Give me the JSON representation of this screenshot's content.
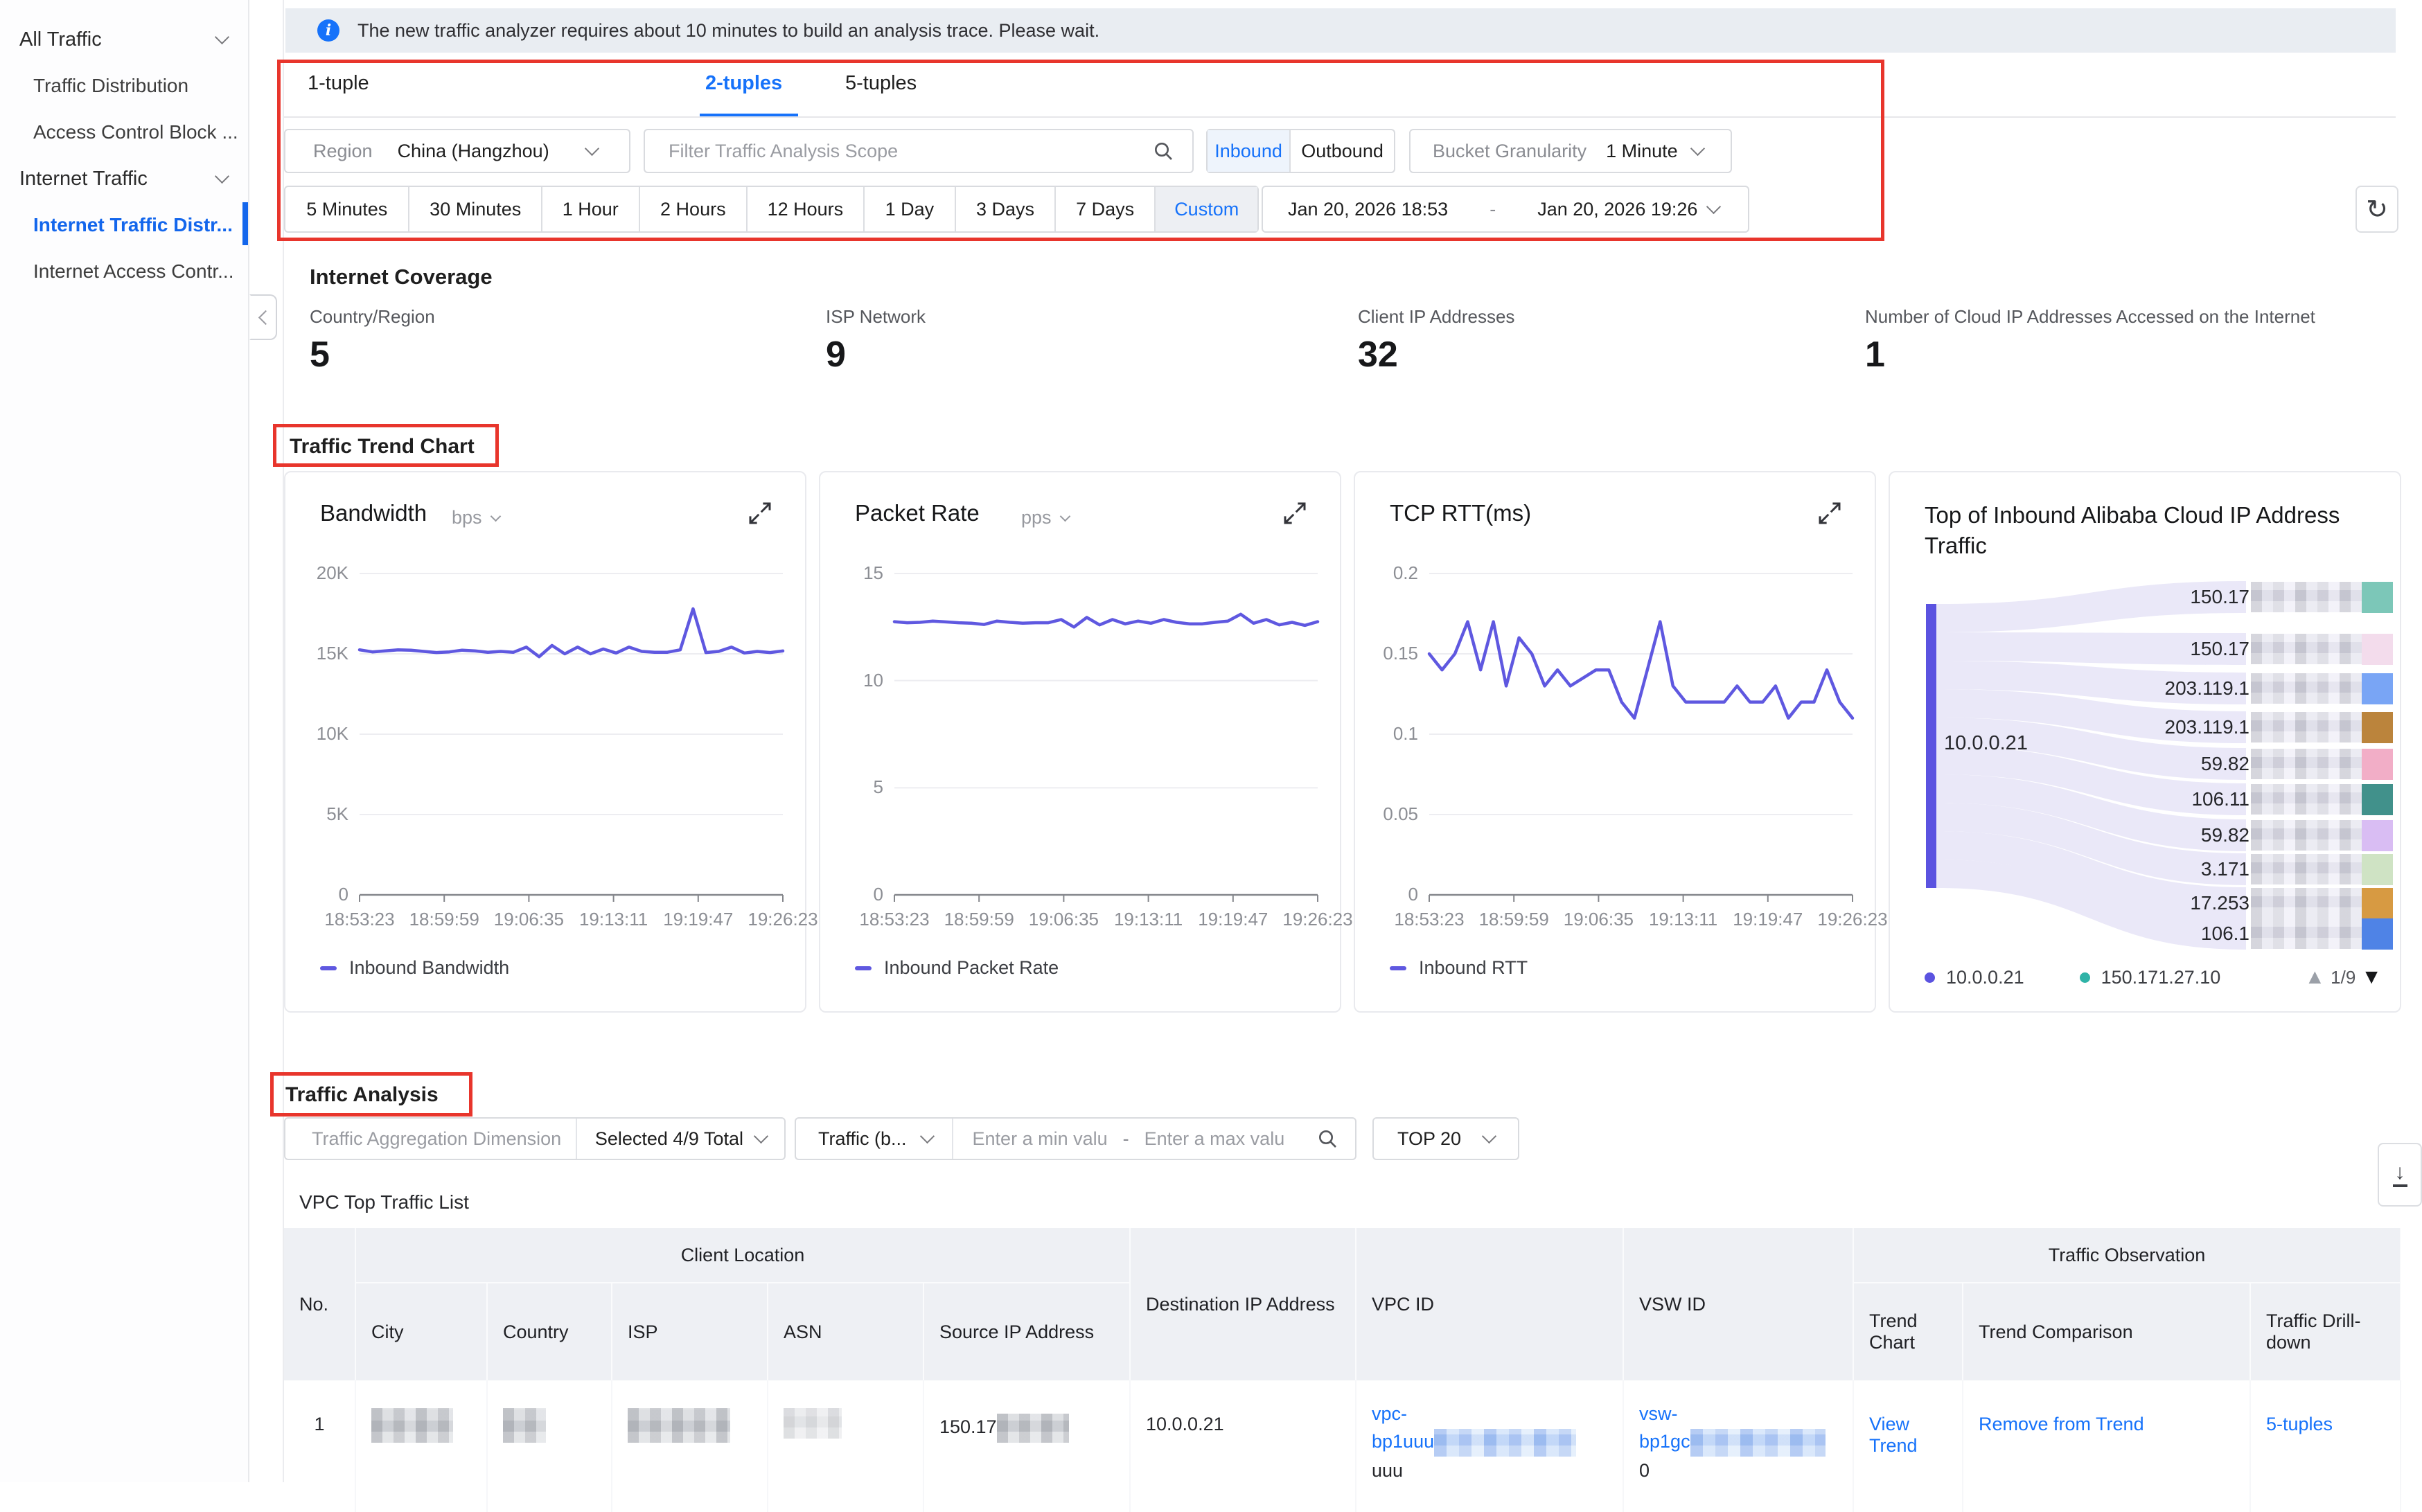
{
  "sidebar": {
    "section1": "All Traffic",
    "item1": "Traffic Distribution",
    "item2": "Access Control Block ...",
    "section2": "Internet Traffic",
    "item3": "Internet Traffic Distr...",
    "item4": "Internet Access Contr..."
  },
  "banner": {
    "text": "The new traffic analyzer requires about 10 minutes to build an analysis trace. Please wait."
  },
  "tabs": {
    "t1": "1-tuple",
    "t2": "2-tuples",
    "t3": "5-tuples"
  },
  "filters": {
    "region_label": "Region",
    "region_value": "China (Hangzhou)",
    "scope_placeholder": "Filter Traffic Analysis Scope",
    "direction_in": "Inbound",
    "direction_out": "Outbound",
    "bucket_label": "Bucket Granularity",
    "bucket_value": "1 Minute"
  },
  "time_range": {
    "options": [
      "5 Minutes",
      "30 Minutes",
      "1 Hour",
      "2 Hours",
      "12 Hours",
      "1 Day",
      "3 Days",
      "7 Days",
      "Custom"
    ],
    "active": "Custom",
    "start": "Jan 20, 2026 18:53",
    "sep": "-",
    "end": "Jan 20, 2026 19:26"
  },
  "coverage": {
    "title": "Internet Coverage",
    "stats": [
      {
        "label": "Country/Region",
        "value": "5"
      },
      {
        "label": "ISP Network",
        "value": "9"
      },
      {
        "label": "Client IP Addresses",
        "value": "32"
      },
      {
        "label": "Number of Cloud IP Addresses Accessed on the Internet",
        "value": "1"
      }
    ]
  },
  "trend_section": {
    "title": "Traffic Trend Chart"
  },
  "chart_data": [
    {
      "id": "bandwidth",
      "type": "line",
      "title": "Bandwidth",
      "unit": "bps",
      "legend": "Inbound Bandwidth",
      "color": "#5f58e0",
      "grid": true,
      "legend_position": "bottom-left",
      "ylim": [
        0,
        20000
      ],
      "yticks": [
        {
          "v": 20000,
          "label": "20K"
        },
        {
          "v": 15000,
          "label": "15K"
        },
        {
          "v": 10000,
          "label": "10K"
        },
        {
          "v": 5000,
          "label": "5K"
        },
        {
          "v": 0,
          "label": "0"
        }
      ],
      "x_ticks": [
        "18:53:23",
        "18:59:59",
        "19:06:35",
        "19:13:11",
        "19:19:47",
        "19:26:23"
      ],
      "values": [
        15250,
        15120,
        15180,
        15250,
        15230,
        15150,
        15080,
        15120,
        15230,
        15180,
        15100,
        15150,
        15100,
        15420,
        14820,
        15520,
        15000,
        15420,
        15000,
        15300,
        15050,
        15420,
        15150,
        15100,
        15100,
        15250,
        17800,
        15080,
        15150,
        15420,
        15050,
        15150,
        15080,
        15180
      ]
    },
    {
      "id": "packet",
      "type": "line",
      "title": "Packet Rate",
      "unit": "pps",
      "legend": "Inbound Packet Rate",
      "color": "#5f58e0",
      "grid": true,
      "legend_position": "bottom-left",
      "ylim": [
        0,
        15
      ],
      "yticks": [
        {
          "v": 15,
          "label": "15"
        },
        {
          "v": 10,
          "label": "10"
        },
        {
          "v": 5,
          "label": "5"
        },
        {
          "v": 0,
          "label": "0"
        }
      ],
      "x_ticks": [
        "18:53:23",
        "18:59:59",
        "19:06:35",
        "19:13:11",
        "19:19:47",
        "19:26:23"
      ],
      "values": [
        12.75,
        12.7,
        12.72,
        12.78,
        12.74,
        12.7,
        12.68,
        12.62,
        12.78,
        12.72,
        12.68,
        12.7,
        12.7,
        12.85,
        12.5,
        12.95,
        12.6,
        12.85,
        12.65,
        12.78,
        12.68,
        12.85,
        12.72,
        12.65,
        12.65,
        12.72,
        12.78,
        13.1,
        12.68,
        12.85,
        12.6,
        12.72,
        12.58,
        12.75
      ]
    },
    {
      "id": "rtt",
      "type": "line",
      "title": "TCP RTT(ms)",
      "unit": null,
      "legend": "Inbound RTT",
      "color": "#5f58e0",
      "grid": true,
      "legend_position": "bottom-left",
      "ylim": [
        0,
        0.2
      ],
      "yticks": [
        {
          "v": 0.2,
          "label": "0.2"
        },
        {
          "v": 0.15,
          "label": "0.15"
        },
        {
          "v": 0.1,
          "label": "0.1"
        },
        {
          "v": 0.05,
          "label": "0.05"
        },
        {
          "v": 0,
          "label": "0"
        }
      ],
      "x_ticks": [
        "18:53:23",
        "18:59:59",
        "19:06:35",
        "19:13:11",
        "19:19:47",
        "19:26:23"
      ],
      "values": [
        0.15,
        0.14,
        0.15,
        0.17,
        0.14,
        0.17,
        0.13,
        0.16,
        0.15,
        0.13,
        0.14,
        0.13,
        0.135,
        0.14,
        0.14,
        0.12,
        0.11,
        0.14,
        0.17,
        0.13,
        0.12,
        0.12,
        0.12,
        0.12,
        0.13,
        0.12,
        0.12,
        0.13,
        0.11,
        0.12,
        0.12,
        0.14,
        0.12,
        0.11
      ]
    },
    {
      "id": "sankey",
      "type": "sankey",
      "title": "Top of Inbound Alibaba Cloud IP Address Traffic",
      "source": "10.0.0.21",
      "source_color": "#5b53e0",
      "flow_color": "#eae8f8",
      "targets": [
        {
          "label": "150.17",
          "chip": "#7cc7b8"
        },
        {
          "label": "150.17",
          "chip": "#f3dcec"
        },
        {
          "label": "203.119.1",
          "chip": "#79a5f5"
        },
        {
          "label": "203.119.1",
          "chip": "#bb843c"
        },
        {
          "label": "59.82",
          "chip": "#f2aec7"
        },
        {
          "label": "106.11",
          "chip": "#41918b"
        },
        {
          "label": "59.82",
          "chip": "#d9bdf3"
        },
        {
          "label": "3.171",
          "chip": "#cfe3c4"
        },
        {
          "label": "17.253",
          "chip": "#d79a42"
        },
        {
          "label": "106.1",
          "chip": "#4f83e6"
        }
      ],
      "legend": [
        {
          "label": "10.0.0.21",
          "color": "#5b53e0"
        },
        {
          "label": "150.171.27.10",
          "color": "#2fb3a7"
        }
      ],
      "page": "1/9"
    }
  ],
  "analysis": {
    "title": "Traffic Analysis",
    "agg_placeholder": "Traffic Aggregation Dimension",
    "selected_value": "Selected 4/9 Total",
    "traffic_value": "Traffic (b...",
    "min_placeholder": "Enter a min valu",
    "max_placeholder": "Enter a max valu",
    "range_sep": "-",
    "top_value": "TOP 20",
    "list_title": "VPC Top Traffic List"
  },
  "table": {
    "group_client": "Client Location",
    "group_observation": "Traffic Observation",
    "col_no": "No.",
    "col_city": "City",
    "col_country": "Country",
    "col_isp": "ISP",
    "col_asn": "ASN",
    "col_src": "Source IP Address",
    "col_dst": "Destination IP Address",
    "col_vpc": "VPC ID",
    "col_vsw": "VSW ID",
    "col_trend": "Trend Chart",
    "col_cmp": "Trend Comparison",
    "col_drill": "Traffic Drill-down",
    "row1": {
      "no": "1",
      "src_prefix": "150.17",
      "dst": "10.0.0.21",
      "vpc_l1": "vpc-",
      "vpc_l2": "bp1uuu",
      "vpc_l3": "uuu",
      "vsw_l1": "vsw-",
      "vsw_l2": "bp1gc",
      "vsw_l3": "0",
      "trend_link": "View Trend",
      "cmp_link": "Remove from Trend",
      "drill_link": "5-tuples"
    }
  }
}
